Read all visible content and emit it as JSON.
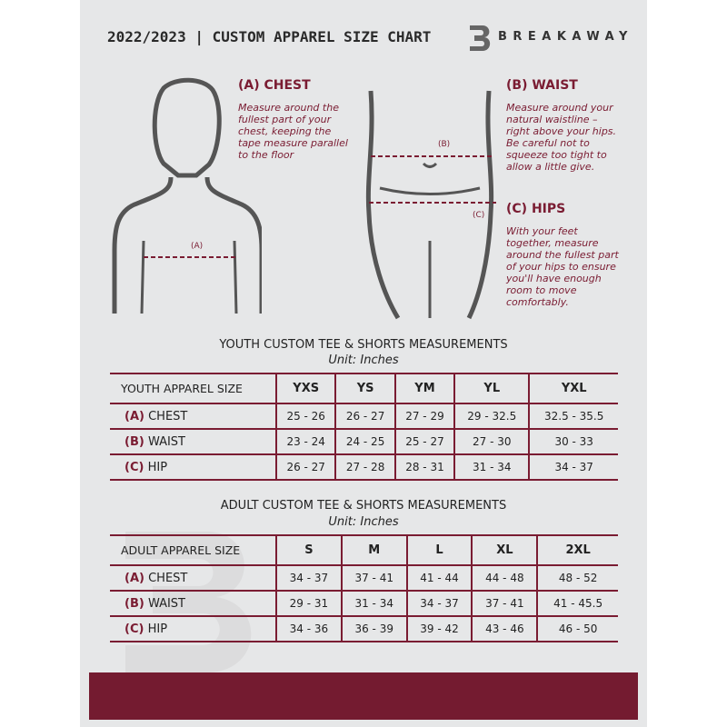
{
  "header": {
    "title": "2022/2023  |  CUSTOM APPAREL SIZE CHART",
    "brand": "BREAKAWAY",
    "logo_letter": "B"
  },
  "measures": {
    "chest": {
      "heading": "(A) CHEST",
      "text": "Measure around the fullest part of your chest, keeping the tape measure parallel to the floor",
      "marker": "(A)"
    },
    "waist": {
      "heading": "(B) WAIST",
      "text": "Measure around your natural waistline – right above your hips. Be careful not to squeeze too tight to allow a little give.",
      "marker": "(B)"
    },
    "hips": {
      "heading": "(C) HIPS",
      "text": "With your feet together, measure around the fullest part of your hips to ensure you'll have enough room to move comfortably.",
      "marker": "(C)"
    }
  },
  "youth": {
    "title": "YOUTH CUSTOM TEE & SHORTS MEASUREMENTS",
    "unit": "Unit: Inches",
    "header": "YOUTH APPAREL SIZE",
    "sizes": [
      "YXS",
      "YS",
      "YM",
      "YL",
      "YXL"
    ],
    "rows": [
      {
        "letter": "(A)",
        "label": "CHEST",
        "values": [
          "25 - 26",
          "26 - 27",
          "27 - 29",
          "29 - 32.5",
          "32.5 - 35.5"
        ]
      },
      {
        "letter": "(B)",
        "label": "WAIST",
        "values": [
          "23 - 24",
          "24 - 25",
          "25 - 27",
          "27 - 30",
          "30 - 33"
        ]
      },
      {
        "letter": "(C)",
        "label": "HIP",
        "values": [
          "26 - 27",
          "27 - 28",
          "28 - 31",
          "31 - 34",
          "34 - 37"
        ]
      }
    ]
  },
  "adult": {
    "title": "ADULT CUSTOM TEE & SHORTS MEASUREMENTS",
    "unit": "Unit: Inches",
    "header": "ADULT APPAREL SIZE",
    "sizes": [
      "S",
      "M",
      "L",
      "XL",
      "2XL"
    ],
    "rows": [
      {
        "letter": "(A)",
        "label": "CHEST",
        "values": [
          "34 - 37",
          "37 - 41",
          "41 - 44",
          "44 - 48",
          "48 - 52"
        ]
      },
      {
        "letter": "(B)",
        "label": "WAIST",
        "values": [
          "29 - 31",
          "31 - 34",
          "34 - 37",
          "37 - 41",
          "41 - 45.5"
        ]
      },
      {
        "letter": "(C)",
        "label": "HIP",
        "values": [
          "34 - 36",
          "36 - 39",
          "39 - 42",
          "43 - 46",
          "46 - 50"
        ]
      }
    ]
  },
  "colors": {
    "accent": "#7a1c32",
    "page": "#e6e7e8"
  }
}
